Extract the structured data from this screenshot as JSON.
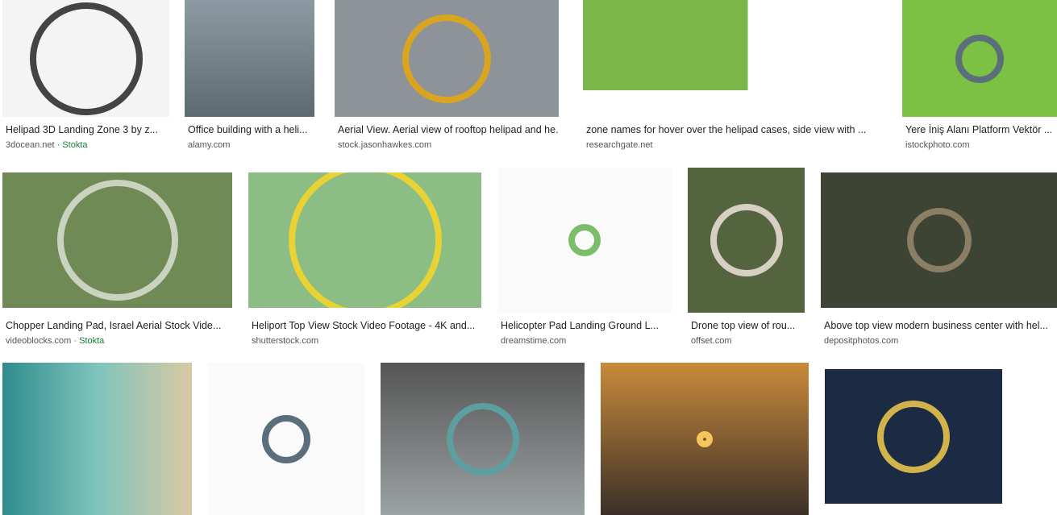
{
  "results": [
    {
      "title": "Helipad 3D Landing Zone 3 by z...",
      "source": "3docean.net",
      "badge": "Stokta"
    },
    {
      "title": "Office building with a heli...",
      "source": "alamy.com"
    },
    {
      "title": "Aerial View. Aerial view of rooftop helipad and he...",
      "source": "stock.jasonhawkes.com"
    },
    {
      "title": "zone names for hover over the helipad cases, side view with ...",
      "source": "researchgate.net"
    },
    {
      "title": "Yere İniş Alanı Platform Vektör ...",
      "source": "istockphoto.com"
    },
    {
      "title": "Chopper Landing Pad, Israel Aerial Stock Vide...",
      "source": "videoblocks.com",
      "badge": "Stokta"
    },
    {
      "title": "Heliport Top View Stock Video Footage - 4K and...",
      "source": "shutterstock.com"
    },
    {
      "title": "Helicopter Pad Landing Ground L...",
      "source": "dreamstime.com"
    },
    {
      "title": "Drone top view of rou...",
      "source": "offset.com"
    },
    {
      "title": "Above top view modern business center with hel...",
      "source": "depositphotos.com"
    },
    {},
    {},
    {},
    {},
    {}
  ]
}
